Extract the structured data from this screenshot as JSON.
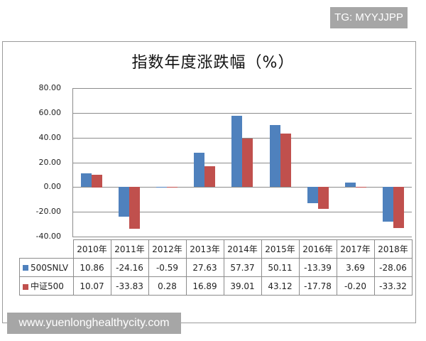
{
  "watermarks": {
    "top_right": "TG: MYYJJPP",
    "bottom_left": "www.yuenlonghealthycity.com"
  },
  "colors": {
    "series_1": "#4f81bd",
    "series_2": "#c0504d"
  },
  "chart_data": {
    "type": "bar",
    "title": "指数年度涨跌幅（%）",
    "xlabel": "",
    "ylabel": "",
    "ylim": [
      -40,
      80
    ],
    "yticks": [
      "80.00",
      "60.00",
      "40.00",
      "20.00",
      "0.00",
      "-20.00",
      "-40.00"
    ],
    "grid": true,
    "legend_position": "data-table",
    "categories": [
      "2010年",
      "2011年",
      "2012年",
      "2013年",
      "2014年",
      "2015年",
      "2016年",
      "2017年",
      "2018年"
    ],
    "series": [
      {
        "name": "500SNLV",
        "color": "#4f81bd",
        "values": [
          10.86,
          -24.16,
          -0.59,
          27.63,
          57.37,
          50.11,
          -13.39,
          3.69,
          -28.06
        ],
        "labels": [
          "10.86",
          "-24.16",
          "-0.59",
          "27.63",
          "57.37",
          "50.11",
          "-13.39",
          "3.69",
          "-28.06"
        ]
      },
      {
        "name": "中证500",
        "color": "#c0504d",
        "values": [
          10.07,
          -33.83,
          0.28,
          16.89,
          39.01,
          43.12,
          -17.78,
          -0.2,
          -33.32
        ],
        "labels": [
          "10.07",
          "-33.83",
          "0.28",
          "16.89",
          "39.01",
          "43.12",
          "-17.78",
          "-0.20",
          "-33.32"
        ]
      }
    ]
  }
}
